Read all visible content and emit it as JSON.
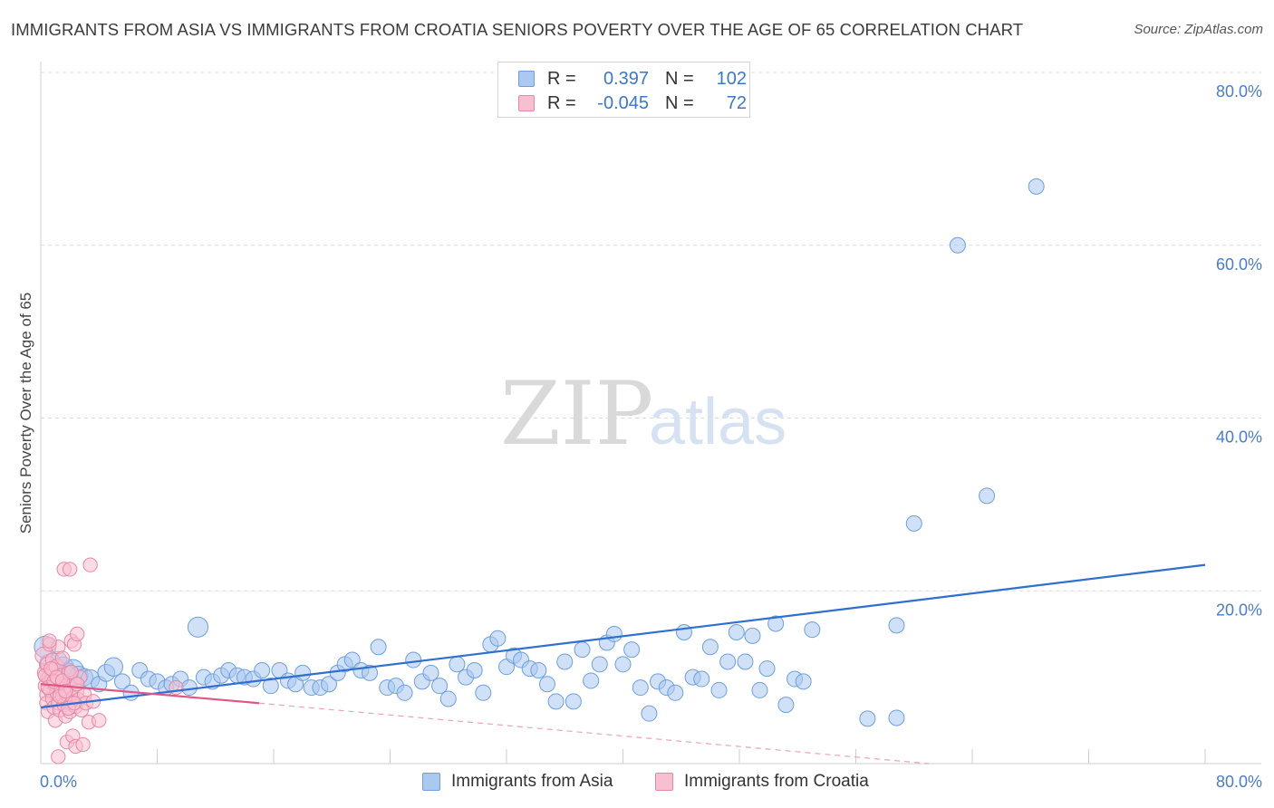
{
  "title": "IMMIGRANTS FROM ASIA VS IMMIGRANTS FROM CROATIA SENIORS POVERTY OVER THE AGE OF 65 CORRELATION CHART",
  "source": "Source: ZipAtlas.com",
  "watermark": {
    "zip": "ZIP",
    "atlas": "atlas"
  },
  "legend": {
    "rows": [
      {
        "r_label": "R =",
        "r_value": "0.397",
        "n_label": "N =",
        "n_value": "102",
        "color": "#aac8f0",
        "border": "#6e9fdc"
      },
      {
        "r_label": "R =",
        "r_value": "-0.045",
        "n_label": "N =",
        "n_value": "72",
        "color": "#f8bfd0",
        "border": "#e886a6"
      }
    ]
  },
  "bottom_legend": [
    {
      "label": "Immigrants from Asia",
      "color": "#aac8f0",
      "border": "#6e9fdc"
    },
    {
      "label": "Immigrants from Croatia",
      "color": "#f8bfd0",
      "border": "#e886a6"
    }
  ],
  "chart_data": {
    "type": "scatter",
    "title": "IMMIGRANTS FROM ASIA VS IMMIGRANTS FROM CROATIA SENIORS POVERTY OVER THE AGE OF 65 CORRELATION CHART",
    "xlabel": "",
    "ylabel": "Seniors Poverty Over the Age of 65",
    "xlim": [
      0,
      80
    ],
    "ylim": [
      0,
      80
    ],
    "x_tick_labels": [
      "0.0%",
      "80.0%"
    ],
    "y_tick_labels": [
      "20.0%",
      "40.0%",
      "60.0%",
      "80.0%"
    ],
    "y_ticks": [
      20,
      40,
      60,
      80
    ],
    "grid": true,
    "legend_position": "top-center",
    "series": [
      {
        "name": "Immigrants from Asia",
        "color": "#aac8f0",
        "stroke": "#6e9fdc",
        "trend": {
          "x": [
            0,
            80
          ],
          "y": [
            6.5,
            23.0
          ],
          "color": "#2f6fcf"
        },
        "points": [
          [
            0.3,
            13.5,
            1.4
          ],
          [
            0.6,
            11.5,
            1.3
          ],
          [
            0.9,
            10.5,
            1.2
          ],
          [
            1.2,
            12.0,
            1.1
          ],
          [
            1.5,
            11.0,
            1.5
          ],
          [
            1.8,
            10.5,
            1.3
          ],
          [
            2.2,
            10.8,
            1.4
          ],
          [
            2.6,
            10.2,
            1.2
          ],
          [
            3.0,
            10.0,
            1.1
          ],
          [
            3.4,
            9.8,
            1.2
          ],
          [
            4.0,
            9.2,
            1.0
          ],
          [
            4.5,
            10.5,
            1.1
          ],
          [
            5.0,
            11.2,
            1.2
          ],
          [
            5.6,
            9.5,
            1.0
          ],
          [
            6.2,
            8.2,
            1.0
          ],
          [
            6.8,
            10.8,
            1.0
          ],
          [
            7.4,
            9.8,
            1.0
          ],
          [
            8.0,
            9.5,
            1.0
          ],
          [
            8.6,
            8.8,
            1.0
          ],
          [
            9.0,
            9.2,
            1.0
          ],
          [
            9.6,
            9.8,
            1.0
          ],
          [
            10.2,
            8.8,
            1.0
          ],
          [
            10.8,
            15.8,
            1.3
          ],
          [
            11.2,
            10.0,
            1.0
          ],
          [
            11.8,
            9.5,
            1.0
          ],
          [
            12.4,
            10.2,
            1.0
          ],
          [
            12.9,
            10.8,
            1.0
          ],
          [
            13.5,
            10.2,
            1.0
          ],
          [
            14.0,
            10.0,
            1.0
          ],
          [
            14.6,
            9.8,
            1.0
          ],
          [
            15.2,
            10.8,
            1.0
          ],
          [
            15.8,
            9.0,
            1.0
          ],
          [
            16.4,
            10.8,
            1.0
          ],
          [
            17.0,
            9.6,
            1.0
          ],
          [
            17.5,
            9.2,
            1.0
          ],
          [
            18.0,
            10.5,
            1.0
          ],
          [
            18.6,
            8.8,
            1.0
          ],
          [
            19.2,
            8.8,
            1.0
          ],
          [
            19.8,
            9.2,
            1.0
          ],
          [
            20.4,
            10.5,
            1.0
          ],
          [
            20.9,
            11.5,
            1.0
          ],
          [
            21.4,
            12.0,
            1.0
          ],
          [
            22.0,
            10.8,
            1.0
          ],
          [
            22.6,
            10.5,
            1.0
          ],
          [
            23.2,
            13.5,
            1.0
          ],
          [
            23.8,
            8.8,
            1.0
          ],
          [
            24.4,
            9.0,
            1.0
          ],
          [
            25.0,
            8.2,
            1.0
          ],
          [
            25.6,
            12.0,
            1.0
          ],
          [
            26.2,
            9.5,
            1.0
          ],
          [
            26.8,
            10.5,
            1.0
          ],
          [
            27.4,
            9.0,
            1.0
          ],
          [
            28.0,
            7.5,
            1.0
          ],
          [
            28.6,
            11.5,
            1.0
          ],
          [
            29.2,
            10.0,
            1.0
          ],
          [
            29.8,
            10.8,
            1.0
          ],
          [
            30.4,
            8.2,
            1.0
          ],
          [
            30.9,
            13.8,
            1.0
          ],
          [
            31.4,
            14.5,
            1.0
          ],
          [
            32.0,
            11.2,
            1.0
          ],
          [
            32.5,
            12.5,
            1.0
          ],
          [
            33.0,
            12.0,
            1.0
          ],
          [
            33.6,
            11.0,
            1.0
          ],
          [
            34.2,
            10.8,
            1.0
          ],
          [
            34.8,
            9.2,
            1.0
          ],
          [
            35.4,
            7.2,
            1.0
          ],
          [
            36.0,
            11.8,
            1.0
          ],
          [
            36.6,
            7.2,
            1.0
          ],
          [
            37.2,
            13.2,
            1.0
          ],
          [
            37.8,
            9.6,
            1.0
          ],
          [
            38.4,
            11.5,
            1.0
          ],
          [
            38.9,
            14.0,
            1.0
          ],
          [
            39.4,
            15.0,
            1.0
          ],
          [
            40.0,
            11.5,
            1.0
          ],
          [
            40.6,
            13.2,
            1.0
          ],
          [
            41.2,
            8.8,
            1.0
          ],
          [
            41.8,
            5.8,
            1.0
          ],
          [
            42.4,
            9.5,
            1.0
          ],
          [
            43.0,
            8.8,
            1.0
          ],
          [
            43.6,
            8.2,
            1.0
          ],
          [
            44.2,
            15.2,
            1.0
          ],
          [
            44.8,
            10.0,
            1.0
          ],
          [
            45.4,
            9.8,
            1.0
          ],
          [
            46.0,
            13.5,
            1.0
          ],
          [
            46.6,
            8.5,
            1.0
          ],
          [
            47.2,
            11.8,
            1.0
          ],
          [
            47.8,
            15.2,
            1.0
          ],
          [
            48.4,
            11.8,
            1.0
          ],
          [
            48.9,
            14.8,
            1.0
          ],
          [
            49.4,
            8.5,
            1.0
          ],
          [
            49.9,
            11.0,
            1.0
          ],
          [
            50.5,
            16.2,
            1.0
          ],
          [
            51.2,
            6.8,
            1.0
          ],
          [
            51.8,
            9.8,
            1.0
          ],
          [
            52.4,
            9.5,
            1.0
          ],
          [
            53.0,
            15.5,
            1.0
          ],
          [
            56.8,
            5.2,
            1.0
          ],
          [
            58.8,
            5.3,
            1.0
          ],
          [
            58.8,
            16.0,
            1.0
          ],
          [
            60.0,
            27.8,
            1.0
          ],
          [
            63.0,
            60.0,
            1.0
          ],
          [
            68.4,
            66.8,
            1.0
          ],
          [
            65.0,
            31.0,
            1.0
          ]
        ]
      },
      {
        "name": "Immigrants from Croatia",
        "color": "#f8bfd0",
        "stroke": "#e886a6",
        "trend": {
          "x": [
            0,
            15
          ],
          "y": [
            9.2,
            7.0
          ],
          "color": "#e05585"
        },
        "trend_ext": {
          "x": [
            15,
            61
          ],
          "y": [
            7.0,
            0.0
          ],
          "color": "#eaa2bb"
        },
        "points": [
          [
            0.2,
            12.5,
            1.1
          ],
          [
            0.3,
            10.5,
            1.0
          ],
          [
            0.3,
            9.0,
            0.9
          ],
          [
            0.4,
            8.0,
            0.9
          ],
          [
            0.4,
            7.0,
            0.9
          ],
          [
            0.5,
            11.5,
            1.0
          ],
          [
            0.5,
            6.0,
            0.9
          ],
          [
            0.6,
            10.0,
            1.0
          ],
          [
            0.6,
            13.8,
            0.9
          ],
          [
            0.7,
            9.5,
            1.0
          ],
          [
            0.7,
            8.5,
            1.0
          ],
          [
            0.8,
            7.5,
            0.9
          ],
          [
            0.8,
            12.0,
            0.9
          ],
          [
            0.9,
            10.8,
            1.0
          ],
          [
            0.9,
            6.5,
            0.9
          ],
          [
            1.0,
            9.2,
            1.0
          ],
          [
            1.0,
            5.0,
            0.9
          ],
          [
            1.1,
            8.2,
            0.9
          ],
          [
            1.1,
            11.2,
            1.0
          ],
          [
            1.2,
            7.0,
            0.9
          ],
          [
            1.2,
            13.5,
            0.9
          ],
          [
            1.3,
            9.8,
            1.0
          ],
          [
            1.3,
            6.2,
            0.9
          ],
          [
            1.4,
            8.8,
            1.0
          ],
          [
            1.4,
            10.2,
            0.9
          ],
          [
            1.5,
            7.8,
            0.9
          ],
          [
            1.5,
            12.2,
            0.9
          ],
          [
            1.6,
            6.8,
            0.9
          ],
          [
            1.6,
            22.5,
            0.9
          ],
          [
            1.7,
            9.0,
            0.9
          ],
          [
            1.7,
            5.5,
            0.9
          ],
          [
            1.8,
            8.0,
            0.9
          ],
          [
            1.8,
            2.5,
            0.9
          ],
          [
            1.9,
            10.5,
            0.9
          ],
          [
            1.9,
            7.2,
            0.9
          ],
          [
            2.0,
            22.5,
            0.9
          ],
          [
            2.0,
            6.0,
            0.9
          ],
          [
            2.1,
            8.6,
            0.9
          ],
          [
            2.1,
            14.2,
            0.9
          ],
          [
            2.2,
            7.6,
            0.9
          ],
          [
            2.2,
            3.2,
            0.9
          ],
          [
            2.3,
            9.4,
            0.9
          ],
          [
            2.3,
            13.8,
            0.9
          ],
          [
            2.4,
            6.6,
            0.9
          ],
          [
            2.4,
            2.0,
            0.9
          ],
          [
            2.5,
            8.4,
            0.9
          ],
          [
            2.5,
            15.0,
            0.9
          ],
          [
            2.6,
            7.4,
            0.9
          ],
          [
            2.7,
            10.0,
            0.9
          ],
          [
            2.8,
            6.2,
            0.9
          ],
          [
            2.9,
            2.2,
            0.9
          ],
          [
            3.0,
            8.0,
            0.9
          ],
          [
            3.1,
            7.0,
            0.9
          ],
          [
            3.3,
            4.8,
            0.9
          ],
          [
            3.4,
            23.0,
            0.9
          ],
          [
            3.6,
            7.2,
            0.9
          ],
          [
            4.0,
            5.0,
            0.9
          ],
          [
            9.3,
            8.8,
            0.9
          ],
          [
            0.3,
            10.2,
            0.9
          ],
          [
            0.5,
            8.8,
            0.9
          ],
          [
            0.7,
            11.0,
            0.9
          ],
          [
            0.9,
            9.5,
            0.9
          ],
          [
            1.1,
            10.0,
            0.9
          ],
          [
            1.3,
            7.8,
            0.9
          ],
          [
            1.5,
            9.6,
            0.9
          ],
          [
            1.7,
            8.4,
            0.9
          ],
          [
            1.9,
            6.4,
            0.9
          ],
          [
            2.1,
            10.6,
            0.9
          ],
          [
            2.3,
            7.0,
            0.9
          ],
          [
            2.5,
            9.2,
            0.9
          ],
          [
            1.2,
            0.8,
            0.9
          ],
          [
            0.6,
            14.2,
            0.9
          ]
        ]
      }
    ]
  }
}
